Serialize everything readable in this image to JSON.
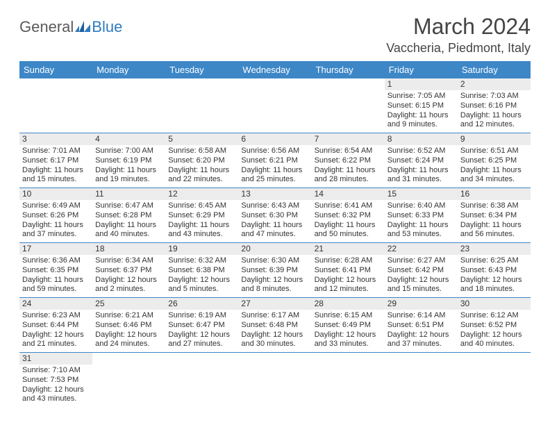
{
  "logo": {
    "part1": "General",
    "part2": "Blue"
  },
  "title": "March 2024",
  "location": "Vaccheria, Piedmont, Italy",
  "colors": {
    "header_bg": "#3d87c7",
    "header_text": "#ffffff",
    "daynum_bg": "#ececec",
    "border": "#3d87c7",
    "body_text": "#333333",
    "logo_gray": "#5a5a5a",
    "logo_blue": "#2f7bbf"
  },
  "weekdays": [
    "Sunday",
    "Monday",
    "Tuesday",
    "Wednesday",
    "Thursday",
    "Friday",
    "Saturday"
  ],
  "weeks": [
    [
      null,
      null,
      null,
      null,
      null,
      {
        "n": "1",
        "rise": "Sunrise: 7:05 AM",
        "set": "Sunset: 6:15 PM",
        "d1": "Daylight: 11 hours",
        "d2": "and 9 minutes."
      },
      {
        "n": "2",
        "rise": "Sunrise: 7:03 AM",
        "set": "Sunset: 6:16 PM",
        "d1": "Daylight: 11 hours",
        "d2": "and 12 minutes."
      }
    ],
    [
      {
        "n": "3",
        "rise": "Sunrise: 7:01 AM",
        "set": "Sunset: 6:17 PM",
        "d1": "Daylight: 11 hours",
        "d2": "and 15 minutes."
      },
      {
        "n": "4",
        "rise": "Sunrise: 7:00 AM",
        "set": "Sunset: 6:19 PM",
        "d1": "Daylight: 11 hours",
        "d2": "and 19 minutes."
      },
      {
        "n": "5",
        "rise": "Sunrise: 6:58 AM",
        "set": "Sunset: 6:20 PM",
        "d1": "Daylight: 11 hours",
        "d2": "and 22 minutes."
      },
      {
        "n": "6",
        "rise": "Sunrise: 6:56 AM",
        "set": "Sunset: 6:21 PM",
        "d1": "Daylight: 11 hours",
        "d2": "and 25 minutes."
      },
      {
        "n": "7",
        "rise": "Sunrise: 6:54 AM",
        "set": "Sunset: 6:22 PM",
        "d1": "Daylight: 11 hours",
        "d2": "and 28 minutes."
      },
      {
        "n": "8",
        "rise": "Sunrise: 6:52 AM",
        "set": "Sunset: 6:24 PM",
        "d1": "Daylight: 11 hours",
        "d2": "and 31 minutes."
      },
      {
        "n": "9",
        "rise": "Sunrise: 6:51 AM",
        "set": "Sunset: 6:25 PM",
        "d1": "Daylight: 11 hours",
        "d2": "and 34 minutes."
      }
    ],
    [
      {
        "n": "10",
        "rise": "Sunrise: 6:49 AM",
        "set": "Sunset: 6:26 PM",
        "d1": "Daylight: 11 hours",
        "d2": "and 37 minutes."
      },
      {
        "n": "11",
        "rise": "Sunrise: 6:47 AM",
        "set": "Sunset: 6:28 PM",
        "d1": "Daylight: 11 hours",
        "d2": "and 40 minutes."
      },
      {
        "n": "12",
        "rise": "Sunrise: 6:45 AM",
        "set": "Sunset: 6:29 PM",
        "d1": "Daylight: 11 hours",
        "d2": "and 43 minutes."
      },
      {
        "n": "13",
        "rise": "Sunrise: 6:43 AM",
        "set": "Sunset: 6:30 PM",
        "d1": "Daylight: 11 hours",
        "d2": "and 47 minutes."
      },
      {
        "n": "14",
        "rise": "Sunrise: 6:41 AM",
        "set": "Sunset: 6:32 PM",
        "d1": "Daylight: 11 hours",
        "d2": "and 50 minutes."
      },
      {
        "n": "15",
        "rise": "Sunrise: 6:40 AM",
        "set": "Sunset: 6:33 PM",
        "d1": "Daylight: 11 hours",
        "d2": "and 53 minutes."
      },
      {
        "n": "16",
        "rise": "Sunrise: 6:38 AM",
        "set": "Sunset: 6:34 PM",
        "d1": "Daylight: 11 hours",
        "d2": "and 56 minutes."
      }
    ],
    [
      {
        "n": "17",
        "rise": "Sunrise: 6:36 AM",
        "set": "Sunset: 6:35 PM",
        "d1": "Daylight: 11 hours",
        "d2": "and 59 minutes."
      },
      {
        "n": "18",
        "rise": "Sunrise: 6:34 AM",
        "set": "Sunset: 6:37 PM",
        "d1": "Daylight: 12 hours",
        "d2": "and 2 minutes."
      },
      {
        "n": "19",
        "rise": "Sunrise: 6:32 AM",
        "set": "Sunset: 6:38 PM",
        "d1": "Daylight: 12 hours",
        "d2": "and 5 minutes."
      },
      {
        "n": "20",
        "rise": "Sunrise: 6:30 AM",
        "set": "Sunset: 6:39 PM",
        "d1": "Daylight: 12 hours",
        "d2": "and 8 minutes."
      },
      {
        "n": "21",
        "rise": "Sunrise: 6:28 AM",
        "set": "Sunset: 6:41 PM",
        "d1": "Daylight: 12 hours",
        "d2": "and 12 minutes."
      },
      {
        "n": "22",
        "rise": "Sunrise: 6:27 AM",
        "set": "Sunset: 6:42 PM",
        "d1": "Daylight: 12 hours",
        "d2": "and 15 minutes."
      },
      {
        "n": "23",
        "rise": "Sunrise: 6:25 AM",
        "set": "Sunset: 6:43 PM",
        "d1": "Daylight: 12 hours",
        "d2": "and 18 minutes."
      }
    ],
    [
      {
        "n": "24",
        "rise": "Sunrise: 6:23 AM",
        "set": "Sunset: 6:44 PM",
        "d1": "Daylight: 12 hours",
        "d2": "and 21 minutes."
      },
      {
        "n": "25",
        "rise": "Sunrise: 6:21 AM",
        "set": "Sunset: 6:46 PM",
        "d1": "Daylight: 12 hours",
        "d2": "and 24 minutes."
      },
      {
        "n": "26",
        "rise": "Sunrise: 6:19 AM",
        "set": "Sunset: 6:47 PM",
        "d1": "Daylight: 12 hours",
        "d2": "and 27 minutes."
      },
      {
        "n": "27",
        "rise": "Sunrise: 6:17 AM",
        "set": "Sunset: 6:48 PM",
        "d1": "Daylight: 12 hours",
        "d2": "and 30 minutes."
      },
      {
        "n": "28",
        "rise": "Sunrise: 6:15 AM",
        "set": "Sunset: 6:49 PM",
        "d1": "Daylight: 12 hours",
        "d2": "and 33 minutes."
      },
      {
        "n": "29",
        "rise": "Sunrise: 6:14 AM",
        "set": "Sunset: 6:51 PM",
        "d1": "Daylight: 12 hours",
        "d2": "and 37 minutes."
      },
      {
        "n": "30",
        "rise": "Sunrise: 6:12 AM",
        "set": "Sunset: 6:52 PM",
        "d1": "Daylight: 12 hours",
        "d2": "and 40 minutes."
      }
    ],
    [
      {
        "n": "31",
        "rise": "Sunrise: 7:10 AM",
        "set": "Sunset: 7:53 PM",
        "d1": "Daylight: 12 hours",
        "d2": "and 43 minutes."
      },
      null,
      null,
      null,
      null,
      null,
      null
    ]
  ]
}
